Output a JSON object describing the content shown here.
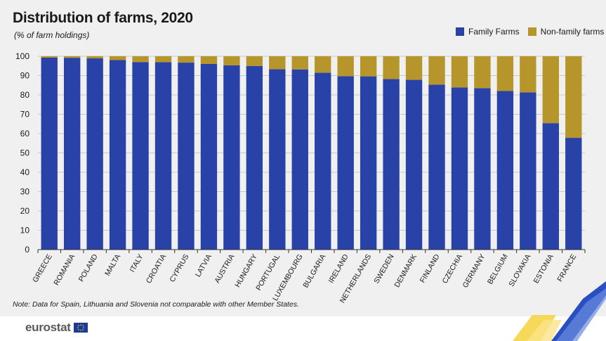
{
  "title": "Distribution of farms, 2020",
  "subtitle": "(% of farm holdings)",
  "note": "Note: Data for Spain, Lithuania and Slovenia not comparable with other Member States.",
  "logo_text": "eurostat",
  "colors": {
    "family": "#2842a8",
    "non_family": "#b6962a",
    "grid": "#c8c8c8",
    "axis": "#333333"
  },
  "chart_data": {
    "type": "bar",
    "stacked": true,
    "title": "Distribution of farms, 2020",
    "subtitle": "(% of farm holdings)",
    "xlabel": "",
    "ylabel": "",
    "ylim": [
      0,
      100
    ],
    "yticks": [
      0,
      10,
      20,
      30,
      40,
      50,
      60,
      70,
      80,
      90,
      100
    ],
    "grid": true,
    "legend_position": "top-right",
    "categories": [
      "GREECE",
      "ROMANIA",
      "POLAND",
      "MALTA",
      "ITALY",
      "CROATIA",
      "CYPRUS",
      "LATVIA",
      "AUSTRIA",
      "HUNGARY",
      "PORTUGAL",
      "LUXEMBOURG",
      "BULGARIA",
      "IRELAND",
      "NETHERLANDS",
      "SWEDEN",
      "DENMARK",
      "FINLAND",
      "CZECHIA",
      "GERMANY",
      "BELGIUM",
      "SLOVAKIA",
      "ESTONIA",
      "FRANCE"
    ],
    "series": [
      {
        "name": "Family Farms",
        "values": [
          99.3,
          99.2,
          98.9,
          98.0,
          97.0,
          96.9,
          96.7,
          96.0,
          95.3,
          95.0,
          93.3,
          93.2,
          91.5,
          89.7,
          89.6,
          88.2,
          87.8,
          85.3,
          83.9,
          83.5,
          82.0,
          81.3,
          65.4,
          57.8
        ]
      },
      {
        "name": "Non-family farms",
        "values": [
          0.7,
          0.8,
          1.1,
          2.0,
          3.0,
          3.1,
          3.3,
          4.0,
          4.7,
          5.0,
          6.7,
          6.8,
          8.5,
          10.3,
          10.4,
          11.8,
          12.2,
          14.7,
          16.1,
          16.5,
          18.0,
          18.7,
          34.6,
          42.2
        ]
      }
    ]
  }
}
